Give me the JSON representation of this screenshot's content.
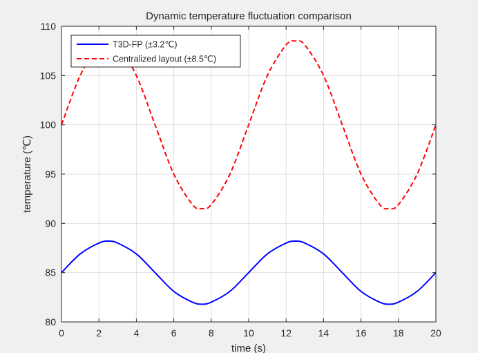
{
  "chart_data": {
    "type": "line",
    "title": "Dynamic temperature fluctuation comparison",
    "xlabel": "time (s)",
    "ylabel": "temperature (℃)",
    "xlim": [
      0,
      20
    ],
    "ylim": [
      80,
      110
    ],
    "xticks": [
      0,
      2,
      4,
      6,
      8,
      10,
      12,
      14,
      16,
      18,
      20
    ],
    "yticks": [
      80,
      85,
      90,
      95,
      100,
      105,
      110
    ],
    "grid": true,
    "legend_position": "top-left",
    "series": [
      {
        "name": "T3D-FP (±3.2℃)",
        "color": "#0000ff",
        "style": "solid",
        "x": [
          0,
          1,
          2,
          2.5,
          3,
          4,
          5,
          6,
          7,
          7.5,
          8,
          9,
          10,
          11,
          12,
          12.5,
          13,
          14,
          15,
          16,
          17,
          17.5,
          18,
          19,
          20
        ],
        "y": [
          85.0,
          86.9,
          88.0,
          88.2,
          88.0,
          86.9,
          85.0,
          83.1,
          82.0,
          81.8,
          82.0,
          83.1,
          85.0,
          86.9,
          88.0,
          88.2,
          88.0,
          86.9,
          85.0,
          83.1,
          82.0,
          81.8,
          82.0,
          83.1,
          85.0
        ]
      },
      {
        "name": "Centralized layout (±8.5℃)",
        "color": "#ff0000",
        "style": "dashed",
        "x": [
          0,
          1,
          2,
          2.5,
          3,
          4,
          5,
          6,
          7,
          7.5,
          8,
          9,
          10,
          11,
          12,
          12.5,
          13,
          14,
          15,
          16,
          17,
          17.5,
          18,
          19,
          20
        ],
        "y": [
          100.0,
          105.0,
          108.1,
          108.5,
          108.1,
          105.0,
          100.0,
          95.0,
          91.9,
          91.5,
          91.9,
          95.0,
          100.0,
          105.0,
          108.1,
          108.5,
          108.1,
          105.0,
          100.0,
          95.0,
          91.9,
          91.5,
          91.9,
          95.0,
          100.0
        ]
      }
    ]
  }
}
